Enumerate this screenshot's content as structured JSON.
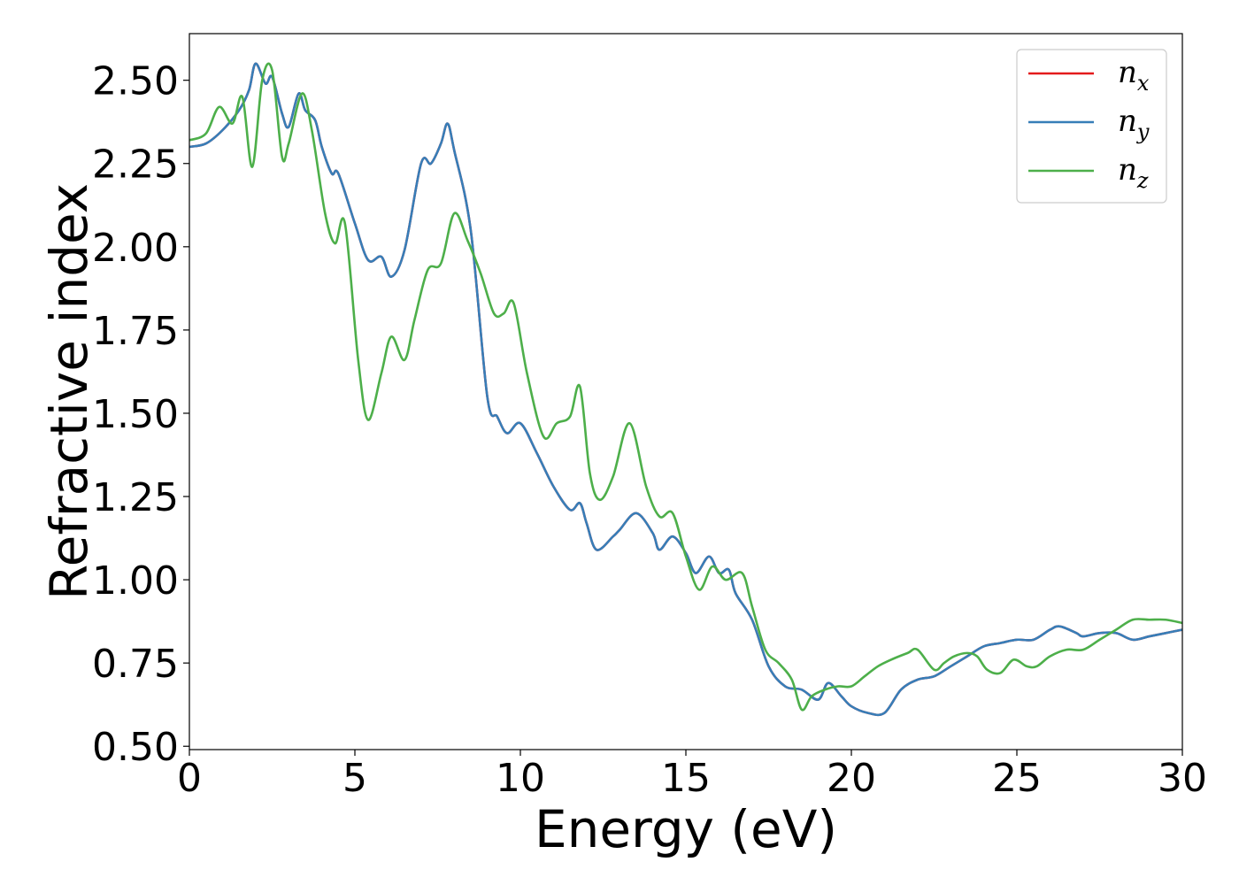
{
  "chart_data": {
    "type": "line",
    "xlabel": "Energy (eV)",
    "ylabel": "Refractive index",
    "xlim": [
      0,
      30
    ],
    "ylim": [
      0.49,
      2.64
    ],
    "xticks": [
      0,
      5,
      10,
      15,
      20,
      25,
      30
    ],
    "xtick_labels": [
      "0",
      "5",
      "10",
      "15",
      "20",
      "25",
      "30"
    ],
    "yticks": [
      0.5,
      0.75,
      1.0,
      1.25,
      1.5,
      1.75,
      2.0,
      2.25,
      2.5
    ],
    "ytick_labels": [
      "0.50",
      "0.75",
      "1.00",
      "1.25",
      "1.50",
      "1.75",
      "2.00",
      "2.25",
      "2.50"
    ],
    "grid": false,
    "legend_position": "top-right",
    "series": [
      {
        "name": "n",
        "subscript": "x",
        "color": "#e41a1c",
        "x": [
          0,
          0.5,
          1,
          1.5,
          1.8,
          2,
          2.3,
          2.5,
          2.8,
          3,
          3.3,
          3.5,
          3.8,
          4,
          4.3,
          4.5,
          5,
          5.4,
          5.8,
          6.1,
          6.5,
          7,
          7.3,
          7.6,
          7.8,
          8,
          8.5,
          9,
          9.3,
          9.6,
          10,
          10.5,
          11,
          11.5,
          11.8,
          12,
          12.3,
          12.8,
          13,
          13.5,
          14,
          14.2,
          14.6,
          15,
          15.3,
          15.7,
          16,
          16.3,
          16.5,
          17,
          17.5,
          18,
          18.5,
          19,
          19.3,
          19.7,
          20,
          20.5,
          21,
          21.5,
          22,
          22.5,
          23,
          23.5,
          24,
          24.5,
          25,
          25.5,
          26,
          26.3,
          26.8,
          27,
          27.5,
          28,
          28.5,
          29,
          29.5,
          30
        ],
        "y": [
          2.3,
          2.31,
          2.35,
          2.41,
          2.47,
          2.55,
          2.49,
          2.51,
          2.4,
          2.36,
          2.46,
          2.41,
          2.38,
          2.3,
          2.22,
          2.22,
          2.07,
          1.96,
          1.97,
          1.91,
          1.99,
          2.25,
          2.25,
          2.31,
          2.37,
          2.29,
          2.05,
          1.55,
          1.49,
          1.44,
          1.47,
          1.38,
          1.28,
          1.21,
          1.23,
          1.17,
          1.09,
          1.13,
          1.15,
          1.2,
          1.14,
          1.09,
          1.13,
          1.08,
          1.02,
          1.07,
          1.02,
          1.03,
          0.96,
          0.88,
          0.74,
          0.68,
          0.67,
          0.64,
          0.69,
          0.65,
          0.62,
          0.6,
          0.6,
          0.67,
          0.7,
          0.71,
          0.74,
          0.77,
          0.8,
          0.81,
          0.82,
          0.82,
          0.85,
          0.86,
          0.84,
          0.83,
          0.84,
          0.84,
          0.82,
          0.83,
          0.84,
          0.85
        ]
      },
      {
        "name": "n",
        "subscript": "y",
        "color": "#377eb8",
        "x": [
          0,
          0.5,
          1,
          1.5,
          1.8,
          2,
          2.3,
          2.5,
          2.8,
          3,
          3.3,
          3.5,
          3.8,
          4,
          4.3,
          4.5,
          5,
          5.4,
          5.8,
          6.1,
          6.5,
          7,
          7.3,
          7.6,
          7.8,
          8,
          8.5,
          9,
          9.3,
          9.6,
          10,
          10.5,
          11,
          11.5,
          11.8,
          12,
          12.3,
          12.8,
          13,
          13.5,
          14,
          14.2,
          14.6,
          15,
          15.3,
          15.7,
          16,
          16.3,
          16.5,
          17,
          17.5,
          18,
          18.5,
          19,
          19.3,
          19.7,
          20,
          20.5,
          21,
          21.5,
          22,
          22.5,
          23,
          23.5,
          24,
          24.5,
          25,
          25.5,
          26,
          26.3,
          26.8,
          27,
          27.5,
          28,
          28.5,
          29,
          29.5,
          30
        ],
        "y": [
          2.3,
          2.31,
          2.35,
          2.41,
          2.47,
          2.55,
          2.49,
          2.51,
          2.4,
          2.36,
          2.46,
          2.41,
          2.38,
          2.3,
          2.22,
          2.22,
          2.07,
          1.96,
          1.97,
          1.91,
          1.99,
          2.25,
          2.25,
          2.31,
          2.37,
          2.29,
          2.05,
          1.55,
          1.49,
          1.44,
          1.47,
          1.38,
          1.28,
          1.21,
          1.23,
          1.17,
          1.09,
          1.13,
          1.15,
          1.2,
          1.14,
          1.09,
          1.13,
          1.08,
          1.02,
          1.07,
          1.02,
          1.03,
          0.96,
          0.88,
          0.74,
          0.68,
          0.67,
          0.64,
          0.69,
          0.65,
          0.62,
          0.6,
          0.6,
          0.67,
          0.7,
          0.71,
          0.74,
          0.77,
          0.8,
          0.81,
          0.82,
          0.82,
          0.85,
          0.86,
          0.84,
          0.83,
          0.84,
          0.84,
          0.82,
          0.83,
          0.84,
          0.85
        ]
      },
      {
        "name": "n",
        "subscript": "z",
        "color": "#4daf4a",
        "x": [
          0,
          0.5,
          0.9,
          1.3,
          1.6,
          1.9,
          2.2,
          2.5,
          2.8,
          3,
          3.4,
          3.7,
          4.1,
          4.4,
          4.7,
          5.1,
          5.4,
          5.8,
          6.1,
          6.5,
          6.8,
          7.2,
          7.6,
          8,
          8.4,
          8.8,
          9.2,
          9.5,
          9.8,
          10.2,
          10.7,
          11.1,
          11.5,
          11.8,
          12.1,
          12.4,
          12.8,
          13.3,
          13.8,
          14.2,
          14.6,
          15,
          15.4,
          15.8,
          16.2,
          16.7,
          17,
          17.4,
          17.8,
          18.2,
          18.5,
          18.8,
          19.2,
          19.6,
          20,
          20.4,
          20.8,
          21.2,
          21.7,
          22,
          22.5,
          22.8,
          23.1,
          23.5,
          23.8,
          24.1,
          24.5,
          24.9,
          25.3,
          25.6,
          26,
          26.5,
          27,
          27.5,
          28,
          28.5,
          29,
          29.5,
          30
        ],
        "y": [
          2.32,
          2.34,
          2.42,
          2.37,
          2.45,
          2.24,
          2.5,
          2.53,
          2.27,
          2.31,
          2.46,
          2.35,
          2.1,
          2.01,
          2.07,
          1.66,
          1.48,
          1.62,
          1.73,
          1.66,
          1.78,
          1.93,
          1.95,
          2.1,
          2.02,
          1.92,
          1.8,
          1.8,
          1.83,
          1.62,
          1.43,
          1.47,
          1.49,
          1.58,
          1.32,
          1.24,
          1.31,
          1.47,
          1.28,
          1.19,
          1.2,
          1.07,
          0.97,
          1.04,
          1.0,
          1.02,
          0.92,
          0.79,
          0.75,
          0.7,
          0.61,
          0.65,
          0.67,
          0.68,
          0.68,
          0.71,
          0.74,
          0.76,
          0.78,
          0.79,
          0.73,
          0.75,
          0.77,
          0.78,
          0.77,
          0.73,
          0.72,
          0.76,
          0.74,
          0.74,
          0.77,
          0.79,
          0.79,
          0.82,
          0.85,
          0.88,
          0.88,
          0.88,
          0.87
        ]
      }
    ]
  }
}
